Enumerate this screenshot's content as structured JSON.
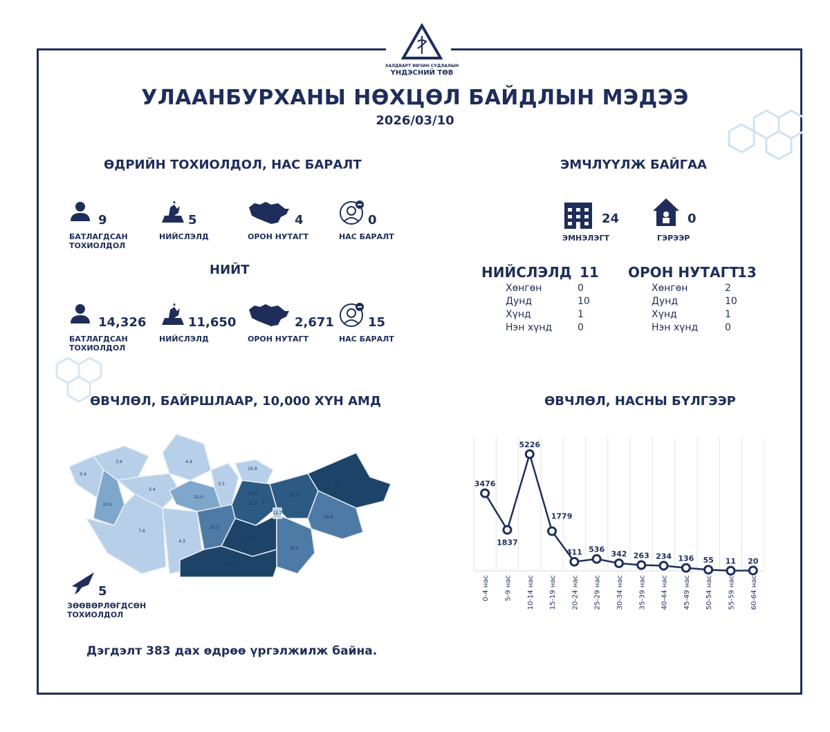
{
  "logo": {
    "line1": "ХАЛДВАРТ ӨВЧИН СУДЛАЛЫН",
    "line2": "ҮНДЭСНИЙ ТӨВ"
  },
  "title": "УЛААНБУРХАНЫ НӨХЦӨЛ БАЙДЛЫН МЭДЭЭ",
  "date": "2026/03/10",
  "daily": {
    "heading": "ӨДРИЙН ТОХИОЛДОЛ, НАС БАРАЛТ",
    "items": [
      {
        "icon": "person-icon",
        "value": "9",
        "label": "БАТЛАГДСАН ТОХИОЛДОЛ"
      },
      {
        "icon": "monument-icon",
        "value": "5",
        "label": "НИЙСЛЭЛД"
      },
      {
        "icon": "mongolia-map-icon",
        "value": "4",
        "label": "ОРОН НУТАГТ"
      },
      {
        "icon": "deceased-icon",
        "value": "0",
        "label": "НАС БАРАЛТ"
      }
    ]
  },
  "total": {
    "heading": "НИЙТ",
    "items": [
      {
        "icon": "person-icon",
        "value": "14,326",
        "label": "БАТЛАГДСАН ТОХИОЛДОЛ"
      },
      {
        "icon": "monument-icon",
        "value": "11,650",
        "label": "НИЙСЛЭЛД"
      },
      {
        "icon": "mongolia-map-icon",
        "value": "2,671",
        "label": "ОРОН НУТАГТ"
      },
      {
        "icon": "deceased-icon",
        "value": "15",
        "label": "НАС БАРАЛТ"
      }
    ]
  },
  "treatment": {
    "heading": "ЭМЧЛҮҮЛЖ БАЙГАА",
    "hospital": {
      "value": "24",
      "label": "ЭМНЭЛЭГТ"
    },
    "home": {
      "value": "0",
      "label": "ГЭРЭЭР"
    },
    "capital": {
      "title": "НИЙСЛЭЛД",
      "total": "11",
      "rows": [
        [
          "Хөнгөн",
          "0"
        ],
        [
          "Дунд",
          "10"
        ],
        [
          "Хүнд",
          "1"
        ],
        [
          "Нэн хүнд",
          "0"
        ]
      ]
    },
    "rural": {
      "title": "ОРОН НУТАГТ",
      "total": "13",
      "rows": [
        [
          "Хөнгөн",
          "2"
        ],
        [
          "Дунд",
          "10"
        ],
        [
          "Хүнд",
          "1"
        ],
        [
          "Нэн хүнд",
          "0"
        ]
      ]
    }
  },
  "map": {
    "heading": "ӨВЧЛӨЛ, БАЙРШЛААР, 10,000 ХҮН АМД",
    "imported": {
      "value": "5",
      "label": "ЗӨӨВӨРЛӨГДСӨН ТОХИОЛДОЛ"
    },
    "regions": [
      "0.4",
      "3.6",
      "4.4",
      "5.4",
      "10.5",
      "12.0",
      "3.5",
      "24.9",
      "36.4",
      "31.2",
      "9",
      "33.2",
      "35.7",
      "20.8",
      "7.6",
      "4.3",
      "25.3",
      "39.6",
      "19.2",
      "38.2",
      "12.7"
    ],
    "colors": {
      "light": "#b7cfe8",
      "mid": "#7fa6cb",
      "darkmid": "#4e7ba5",
      "dark": "#2c5a83",
      "darkest": "#1d4468"
    }
  },
  "footer": "Дэгдэлт 383 дах өдрөө үргэлжилж байна.",
  "chart_data": {
    "type": "line",
    "title": "ӨВЧЛӨЛ, НАСНЫ БҮЛГЭЭР",
    "categories": [
      "0-4 нас",
      "5-9 нас",
      "10-14 нас",
      "15-19 нас",
      "20-24 нас",
      "25-29 нас",
      "30-34 нас",
      "35-39 нас",
      "40-44 нас",
      "45-49 нас",
      "50-54 нас",
      "55-59 нас",
      "60-64 нас"
    ],
    "values": [
      3476,
      1837,
      5226,
      1779,
      411,
      536,
      342,
      263,
      234,
      136,
      55,
      11,
      20
    ],
    "ylim": [
      0,
      6000
    ],
    "grid": "vertical",
    "color": "#1f2d5a"
  }
}
